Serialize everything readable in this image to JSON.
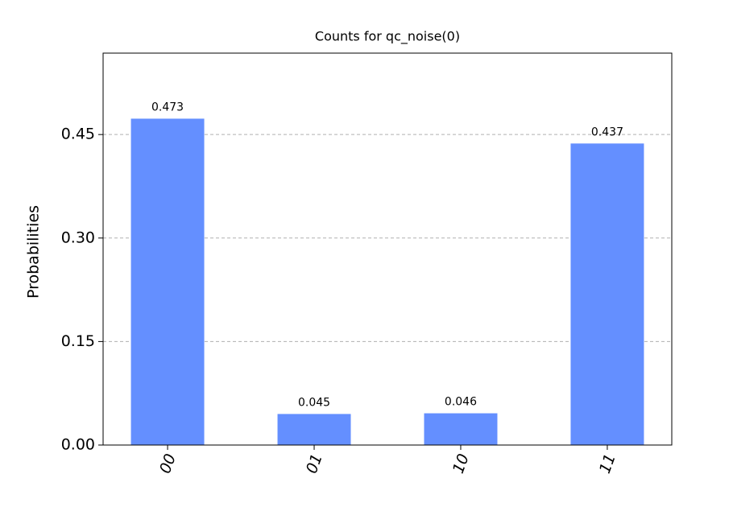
{
  "chart_data": {
    "type": "bar",
    "title": "Counts for qc_noise(0)",
    "ylabel": "Probabilities",
    "categories": [
      "00",
      "01",
      "10",
      "11"
    ],
    "values": [
      0.473,
      0.045,
      0.046,
      0.437
    ],
    "color": "#648fff",
    "ylim": [
      0,
      0.568
    ],
    "yticks": [
      {
        "value": 0,
        "label": "0.00"
      },
      0.15,
      {
        "value": 0.3,
        "label": "0.30"
      },
      0.45
    ],
    "grid": true
  }
}
